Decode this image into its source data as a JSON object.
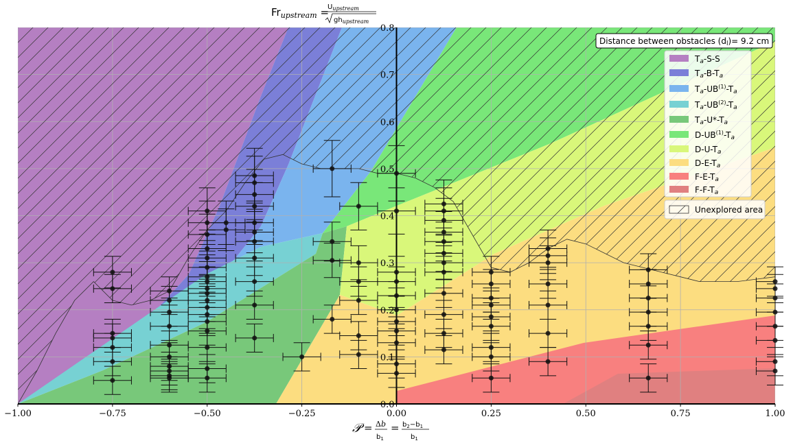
{
  "chart_data": {
    "type": "scatter",
    "title": "Fr_upstream = U_upstream / √(gh_upstream)",
    "xlabel": "𝒫 = Δb/b₁ = (b₂−b₁)/b₁",
    "ylabel": "",
    "xlim": [
      -1.0,
      1.0
    ],
    "ylim": [
      0.0,
      0.8
    ],
    "xticks": [
      "−1.00",
      "−0.75",
      "−0.50",
      "−0.25",
      "0.00",
      "0.25",
      "0.50",
      "0.75",
      "1.00"
    ],
    "yticks": [
      "0.0",
      "0.1",
      "0.2",
      "0.3",
      "0.4",
      "0.5",
      "0.6",
      "0.7",
      "0.8"
    ],
    "grid": true,
    "legend_position": "top-right",
    "annotation": "Distance between obstacles (d_l)= 9.2 cm",
    "regions": [
      {
        "name": "Ta-S-S",
        "color": "#b57fc2"
      },
      {
        "name": "Ta-B-Ta",
        "color": "#7b7fd8"
      },
      {
        "name": "Ta-UB(1)-Ta",
        "color": "#7ab4ee"
      },
      {
        "name": "Ta-UB(2)-Ta",
        "color": "#77d1d3"
      },
      {
        "name": "Ta-U*-Ta",
        "color": "#78c87a"
      },
      {
        "name": "D-UB(1)-Ta",
        "color": "#79e779"
      },
      {
        "name": "D-U-Ta",
        "color": "#d9f77a"
      },
      {
        "name": "D-E-Ta",
        "color": "#fcdd80"
      },
      {
        "name": "F-E-Ta",
        "color": "#f8807f"
      },
      {
        "name": "F-F-Ta",
        "color": "#e08080"
      }
    ],
    "unexplored_label": "Unexplored area",
    "boundary_curve": [
      [
        -1.0,
        0.0
      ],
      [
        -0.95,
        0.07
      ],
      [
        -0.9,
        0.15
      ],
      [
        -0.85,
        0.22
      ],
      [
        -0.8,
        0.26
      ],
      [
        -0.75,
        0.22
      ],
      [
        -0.7,
        0.21
      ],
      [
        -0.65,
        0.22
      ],
      [
        -0.6,
        0.24
      ],
      [
        -0.55,
        0.31
      ],
      [
        -0.5,
        0.37
      ],
      [
        -0.45,
        0.41
      ],
      [
        -0.4,
        0.47
      ],
      [
        -0.35,
        0.52
      ],
      [
        -0.3,
        0.53
      ],
      [
        -0.25,
        0.51
      ],
      [
        -0.2,
        0.5
      ],
      [
        -0.15,
        0.5
      ],
      [
        -0.1,
        0.5
      ],
      [
        -0.05,
        0.49
      ],
      [
        0.0,
        0.49
      ],
      [
        0.05,
        0.48
      ],
      [
        0.1,
        0.46
      ],
      [
        0.15,
        0.43
      ],
      [
        0.2,
        0.36
      ],
      [
        0.25,
        0.29
      ],
      [
        0.3,
        0.28
      ],
      [
        0.35,
        0.3
      ],
      [
        0.4,
        0.33
      ],
      [
        0.45,
        0.35
      ],
      [
        0.5,
        0.34
      ],
      [
        0.55,
        0.32
      ],
      [
        0.6,
        0.3
      ],
      [
        0.65,
        0.29
      ],
      [
        0.7,
        0.28
      ],
      [
        0.75,
        0.27
      ],
      [
        0.8,
        0.26
      ],
      [
        0.85,
        0.26
      ],
      [
        0.9,
        0.26
      ],
      [
        0.95,
        0.265
      ],
      [
        1.0,
        0.27
      ]
    ],
    "points": [
      {
        "x": -0.75,
        "y": 0.28
      },
      {
        "x": -0.75,
        "y": 0.245
      },
      {
        "x": -0.75,
        "y": 0.15
      },
      {
        "x": -0.75,
        "y": 0.14
      },
      {
        "x": -0.75,
        "y": 0.12
      },
      {
        "x": -0.75,
        "y": 0.09
      },
      {
        "x": -0.75,
        "y": 0.05
      },
      {
        "x": -0.6,
        "y": 0.24
      },
      {
        "x": -0.6,
        "y": 0.22
      },
      {
        "x": -0.6,
        "y": 0.195
      },
      {
        "x": -0.6,
        "y": 0.165
      },
      {
        "x": -0.6,
        "y": 0.125
      },
      {
        "x": -0.6,
        "y": 0.1
      },
      {
        "x": -0.6,
        "y": 0.08
      },
      {
        "x": -0.6,
        "y": 0.07
      },
      {
        "x": -0.6,
        "y": 0.06
      },
      {
        "x": -0.6,
        "y": 0.055
      },
      {
        "x": -0.5,
        "y": 0.41
      },
      {
        "x": -0.5,
        "y": 0.385
      },
      {
        "x": -0.5,
        "y": 0.36
      },
      {
        "x": -0.5,
        "y": 0.33
      },
      {
        "x": -0.5,
        "y": 0.31
      },
      {
        "x": -0.5,
        "y": 0.29
      },
      {
        "x": -0.5,
        "y": 0.27
      },
      {
        "x": -0.5,
        "y": 0.26
      },
      {
        "x": -0.5,
        "y": 0.245
      },
      {
        "x": -0.5,
        "y": 0.235
      },
      {
        "x": -0.5,
        "y": 0.22
      },
      {
        "x": -0.5,
        "y": 0.205
      },
      {
        "x": -0.5,
        "y": 0.19
      },
      {
        "x": -0.5,
        "y": 0.175
      },
      {
        "x": -0.5,
        "y": 0.155
      },
      {
        "x": -0.5,
        "y": 0.12
      },
      {
        "x": -0.5,
        "y": 0.075
      },
      {
        "x": -0.5,
        "y": 0.055
      },
      {
        "x": -0.45,
        "y": 0.385
      },
      {
        "x": -0.45,
        "y": 0.37
      },
      {
        "x": -0.375,
        "y": 0.485
      },
      {
        "x": -0.375,
        "y": 0.47
      },
      {
        "x": -0.375,
        "y": 0.445
      },
      {
        "x": -0.375,
        "y": 0.42
      },
      {
        "x": -0.375,
        "y": 0.385
      },
      {
        "x": -0.375,
        "y": 0.365
      },
      {
        "x": -0.375,
        "y": 0.345
      },
      {
        "x": -0.375,
        "y": 0.31
      },
      {
        "x": -0.375,
        "y": 0.26
      },
      {
        "x": -0.375,
        "y": 0.21
      },
      {
        "x": -0.375,
        "y": 0.14
      },
      {
        "x": -0.25,
        "y": 0.1
      },
      {
        "x": -0.17,
        "y": 0.5
      },
      {
        "x": -0.17,
        "y": 0.345
      },
      {
        "x": -0.17,
        "y": 0.305
      },
      {
        "x": -0.17,
        "y": 0.18
      },
      {
        "x": -0.1,
        "y": 0.42
      },
      {
        "x": -0.1,
        "y": 0.3
      },
      {
        "x": -0.1,
        "y": 0.26
      },
      {
        "x": -0.1,
        "y": 0.22
      },
      {
        "x": -0.1,
        "y": 0.145
      },
      {
        "x": -0.1,
        "y": 0.105
      },
      {
        "x": 0.0,
        "y": 0.49
      },
      {
        "x": 0.0,
        "y": 0.41
      },
      {
        "x": 0.0,
        "y": 0.28
      },
      {
        "x": 0.0,
        "y": 0.26
      },
      {
        "x": 0.0,
        "y": 0.23
      },
      {
        "x": 0.0,
        "y": 0.2
      },
      {
        "x": 0.0,
        "y": 0.175
      },
      {
        "x": 0.0,
        "y": 0.155
      },
      {
        "x": 0.0,
        "y": 0.13
      },
      {
        "x": 0.0,
        "y": 0.085
      },
      {
        "x": 0.0,
        "y": 0.065
      },
      {
        "x": 0.125,
        "y": 0.425
      },
      {
        "x": 0.125,
        "y": 0.41
      },
      {
        "x": 0.125,
        "y": 0.39
      },
      {
        "x": 0.125,
        "y": 0.365
      },
      {
        "x": 0.125,
        "y": 0.345
      },
      {
        "x": 0.125,
        "y": 0.32
      },
      {
        "x": 0.125,
        "y": 0.3
      },
      {
        "x": 0.125,
        "y": 0.28
      },
      {
        "x": 0.125,
        "y": 0.235
      },
      {
        "x": 0.125,
        "y": 0.19
      },
      {
        "x": 0.125,
        "y": 0.15
      },
      {
        "x": 0.125,
        "y": 0.115
      },
      {
        "x": 0.25,
        "y": 0.28
      },
      {
        "x": 0.25,
        "y": 0.255
      },
      {
        "x": 0.25,
        "y": 0.225
      },
      {
        "x": 0.25,
        "y": 0.21
      },
      {
        "x": 0.25,
        "y": 0.185
      },
      {
        "x": 0.25,
        "y": 0.165
      },
      {
        "x": 0.25,
        "y": 0.12
      },
      {
        "x": 0.25,
        "y": 0.1
      },
      {
        "x": 0.25,
        "y": 0.055
      },
      {
        "x": 0.4,
        "y": 0.33
      },
      {
        "x": 0.4,
        "y": 0.315
      },
      {
        "x": 0.4,
        "y": 0.3
      },
      {
        "x": 0.4,
        "y": 0.255
      },
      {
        "x": 0.4,
        "y": 0.21
      },
      {
        "x": 0.4,
        "y": 0.15
      },
      {
        "x": 0.4,
        "y": 0.09
      },
      {
        "x": 0.665,
        "y": 0.285
      },
      {
        "x": 0.665,
        "y": 0.255
      },
      {
        "x": 0.665,
        "y": 0.225
      },
      {
        "x": 0.665,
        "y": 0.195
      },
      {
        "x": 0.665,
        "y": 0.165
      },
      {
        "x": 0.665,
        "y": 0.125
      },
      {
        "x": 0.665,
        "y": 0.055
      },
      {
        "x": 1.0,
        "y": 0.26
      },
      {
        "x": 1.0,
        "y": 0.245
      },
      {
        "x": 1.0,
        "y": 0.225
      },
      {
        "x": 1.0,
        "y": 0.195
      },
      {
        "x": 1.0,
        "y": 0.165
      },
      {
        "x": 1.0,
        "y": 0.135
      },
      {
        "x": 1.0,
        "y": 0.09
      },
      {
        "x": 1.0,
        "y": 0.07
      }
    ],
    "error": {
      "x": 0.05,
      "y_frac": 0.12
    }
  }
}
